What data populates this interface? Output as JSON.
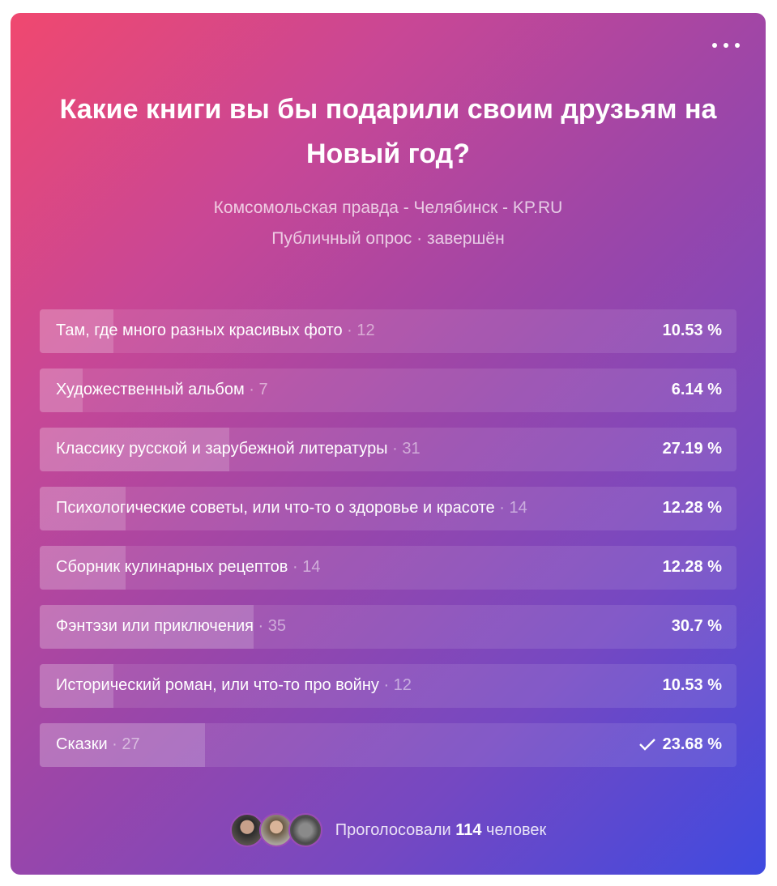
{
  "poll": {
    "title": "Какие книги вы бы подарили своим друзьям на Новый год?",
    "author": "Комсомольская правда - Челябинск - KP.RU",
    "status": "Публичный опрос · завершён",
    "options": [
      {
        "label": "Там, где много разных красивых фото",
        "count": " · 12",
        "percent": "10.53 %",
        "fraction": 0.1053,
        "selected": false
      },
      {
        "label": "Художественный альбом",
        "count": " · 7",
        "percent": "6.14 %",
        "fraction": 0.0614,
        "selected": false
      },
      {
        "label": "Классику русской и зарубежной литературы",
        "count": " · 31",
        "percent": "27.19 %",
        "fraction": 0.2719,
        "selected": false
      },
      {
        "label": "Психологические советы, или что-то о здоровье и красоте",
        "count": " · 14",
        "percent": "12.28 %",
        "fraction": 0.1228,
        "selected": false
      },
      {
        "label": "Сборник кулинарных рецептов",
        "count": " · 14",
        "percent": "12.28 %",
        "fraction": 0.1228,
        "selected": false
      },
      {
        "label": "Фэнтэзи или приключения",
        "count": " · 35",
        "percent": "30.7 %",
        "fraction": 0.307,
        "selected": false
      },
      {
        "label": "Исторический роман, или что-то про войну",
        "count": " · 12",
        "percent": "10.53 %",
        "fraction": 0.1053,
        "selected": false
      },
      {
        "label": "Сказки",
        "count": " · 27",
        "percent": "23.68 %",
        "fraction": 0.2368,
        "selected": true
      }
    ],
    "footer": {
      "voted_prefix": "Проголосовали ",
      "voted_count": "114",
      "voted_suffix": " человек"
    }
  }
}
